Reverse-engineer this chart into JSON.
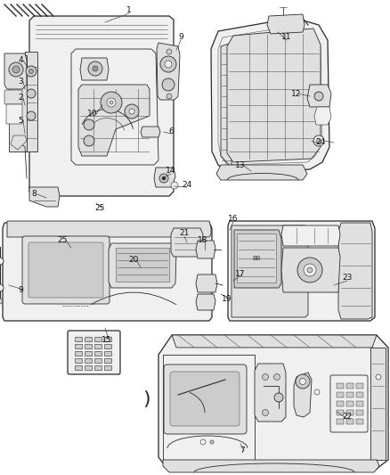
{
  "background_color": "#ffffff",
  "line_color": "#2a2a2a",
  "light_line": "#555555",
  "fill_light": "#f0f0f0",
  "fill_medium": "#e0e0e0",
  "fill_dark": "#cccccc",
  "figsize": [
    4.38,
    5.33
  ],
  "dpi": 100,
  "callouts": [
    [
      145,
      12,
      "1"
    ],
    [
      23,
      68,
      "4"
    ],
    [
      23,
      92,
      "3"
    ],
    [
      23,
      110,
      "2"
    ],
    [
      23,
      135,
      "5"
    ],
    [
      104,
      128,
      "10"
    ],
    [
      203,
      42,
      "9"
    ],
    [
      192,
      148,
      "6"
    ],
    [
      192,
      192,
      "14"
    ],
    [
      210,
      208,
      "24"
    ],
    [
      38,
      218,
      "8"
    ],
    [
      112,
      234,
      "25"
    ],
    [
      322,
      42,
      "11"
    ],
    [
      333,
      105,
      "12"
    ],
    [
      360,
      160,
      "24"
    ],
    [
      270,
      185,
      "13"
    ],
    [
      70,
      270,
      "25"
    ],
    [
      207,
      262,
      "21"
    ],
    [
      150,
      292,
      "20"
    ],
    [
      23,
      325,
      "9"
    ],
    [
      120,
      382,
      "15"
    ],
    [
      228,
      270,
      "18"
    ],
    [
      262,
      246,
      "16"
    ],
    [
      270,
      308,
      "17"
    ],
    [
      255,
      335,
      "19"
    ],
    [
      390,
      312,
      "23"
    ],
    [
      390,
      468,
      "22"
    ],
    [
      272,
      506,
      "7"
    ]
  ]
}
